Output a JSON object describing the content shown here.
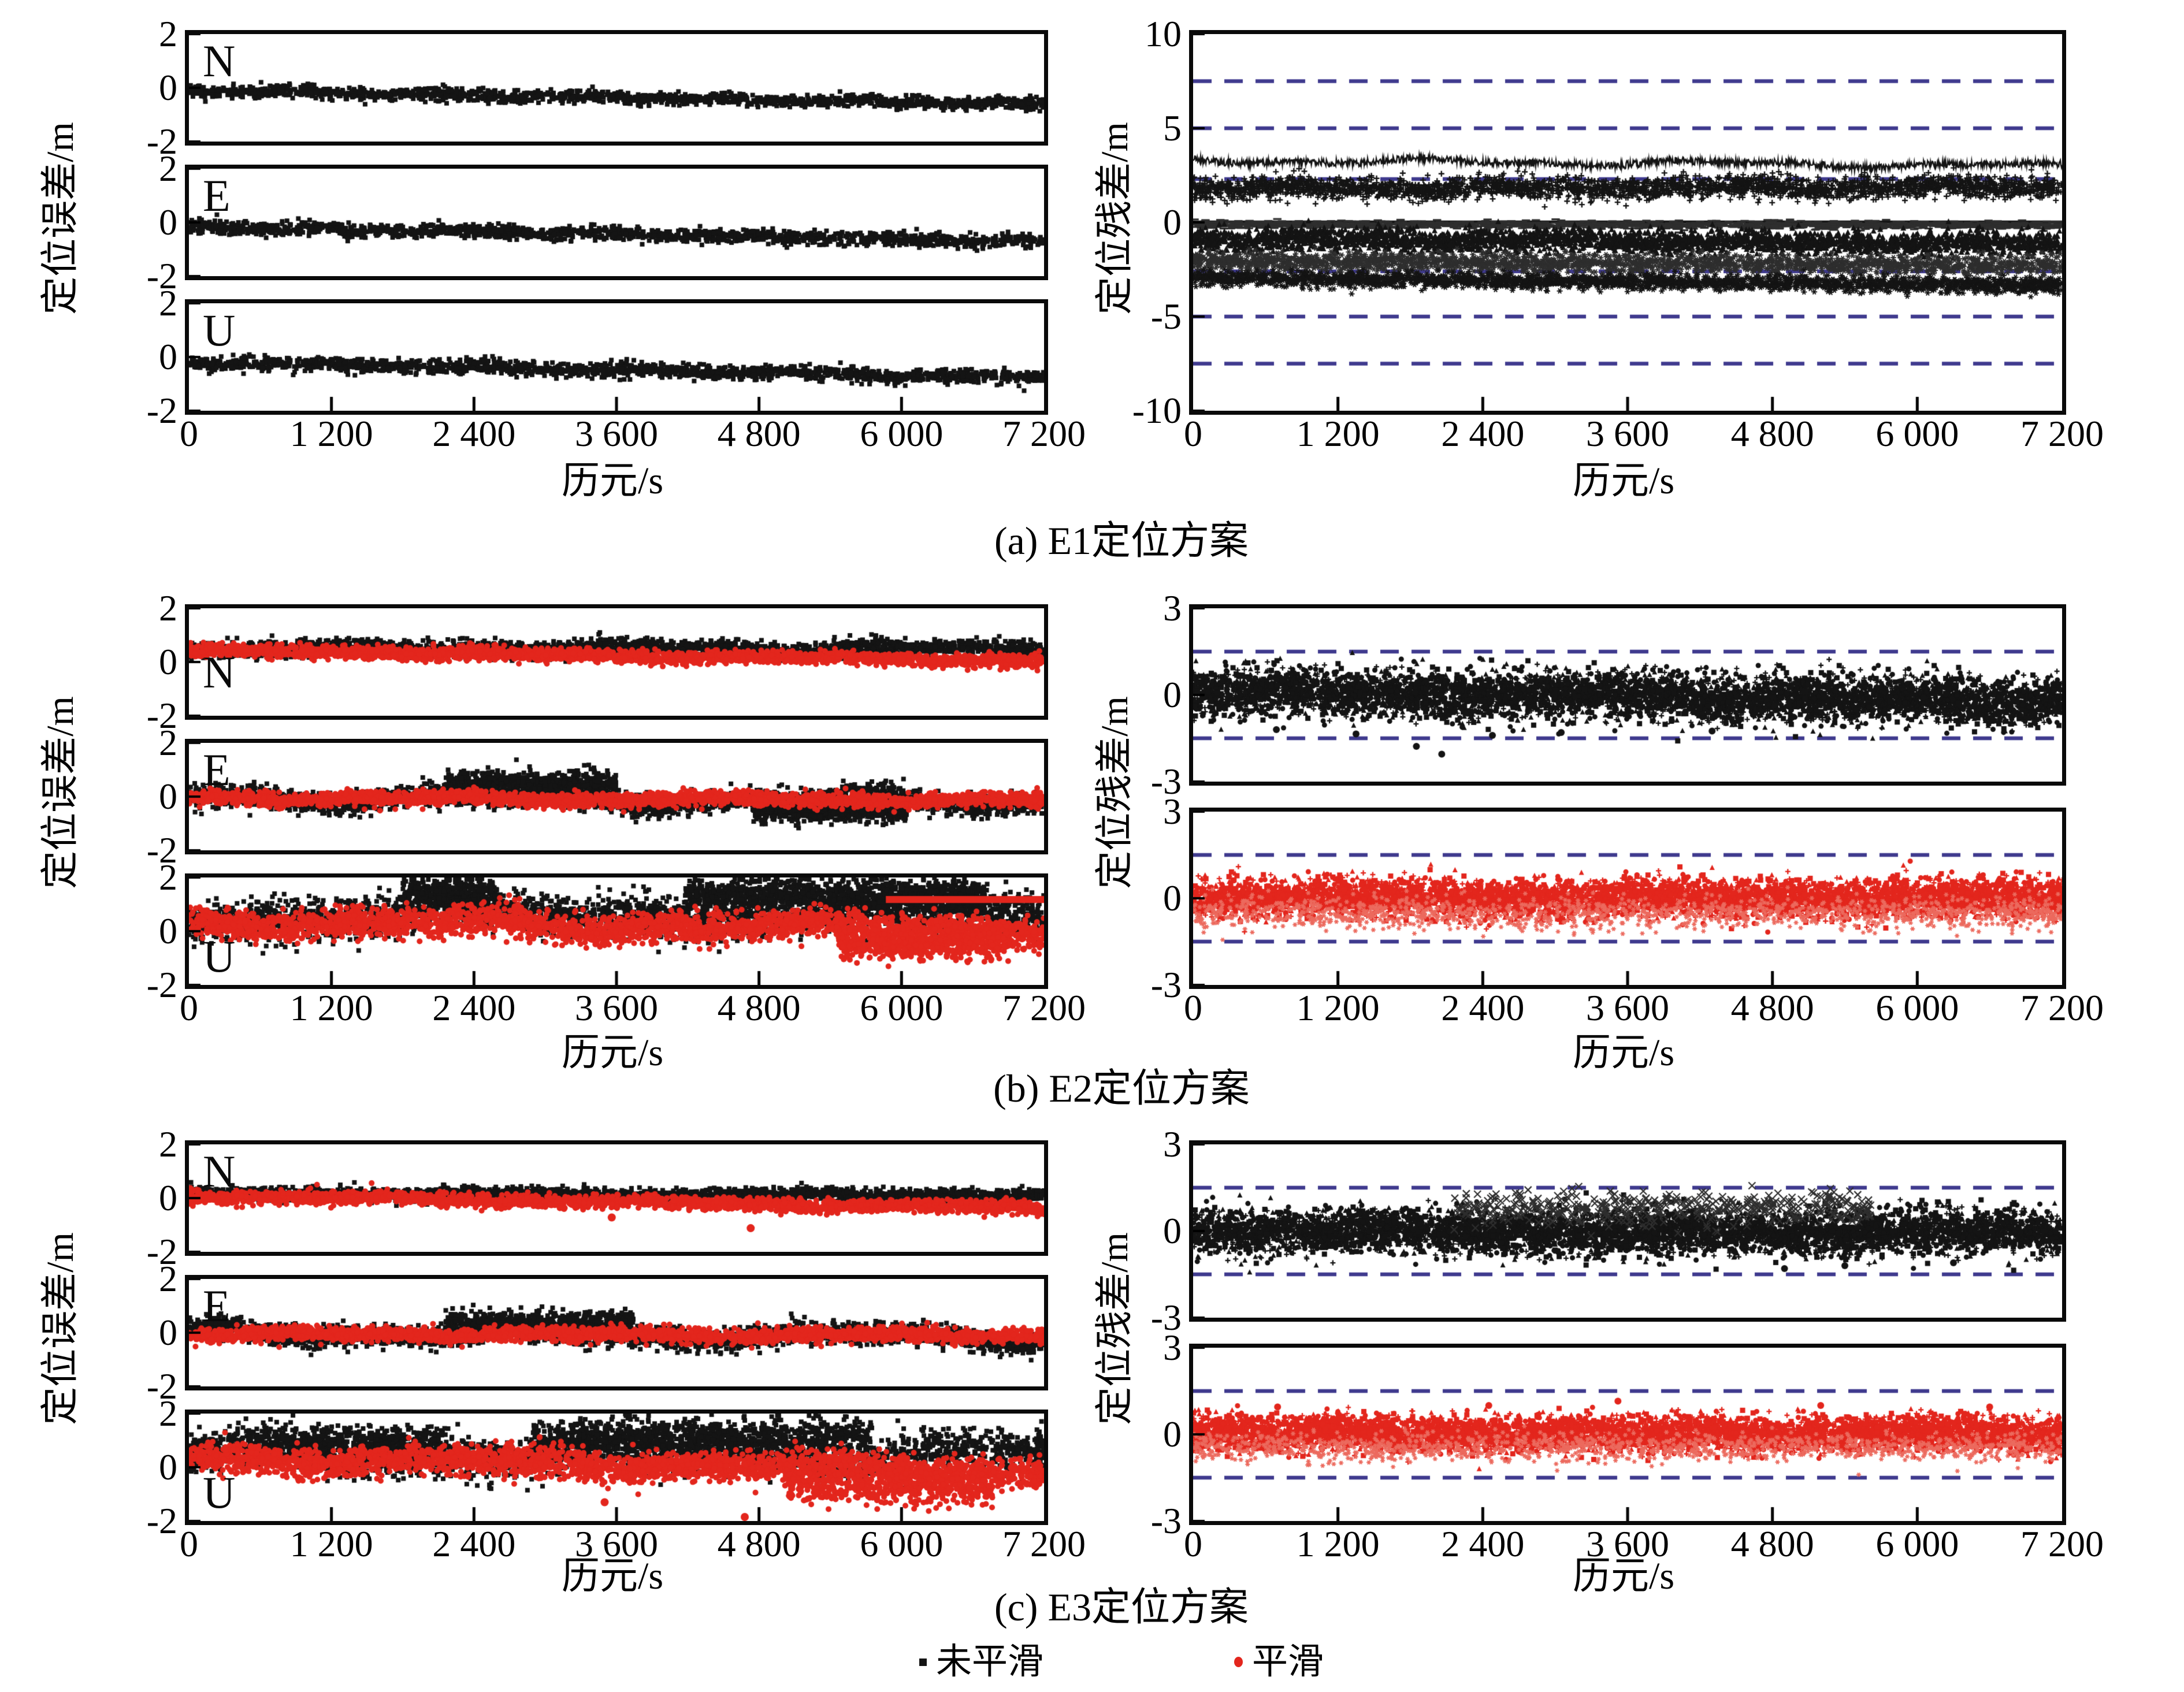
{
  "page": {
    "background": "#ffffff"
  },
  "colors": {
    "black": "#141414",
    "red": "#e3261d",
    "faint_red": "#ec6a5e",
    "gray": "#2e2e2e",
    "dash": "#3f3a8e",
    "axis": "#000000"
  },
  "labels": {
    "xlabel": "历元/s",
    "ylabel_error": "定位误差/m",
    "ylabel_residual": "定位残差/m"
  },
  "captions": {
    "a": "(a) E1定位方案",
    "b": "(b) E2定位方案",
    "c": "(c) E3定位方案"
  },
  "legend": {
    "items": [
      {
        "label": "未平滑",
        "marker": "square-dot",
        "color": "#141414"
      },
      {
        "label": "平滑",
        "marker": "round-dot",
        "color": "#e3261d"
      }
    ]
  },
  "chart_data": {
    "x_axis": {
      "min": 0,
      "max": 7200,
      "ticks": [
        0,
        1200,
        2400,
        3600,
        4800,
        6000,
        7200
      ],
      "tick_labels": [
        "0",
        "1 200",
        "2 400",
        "3 600",
        "4 800",
        "6 000",
        "7 200"
      ]
    },
    "a_left_N": {
      "type": "scatter",
      "corner": "N",
      "ylim": [
        -2,
        2
      ],
      "yticks": [
        2,
        0,
        -2
      ],
      "ytick_labels": [
        "2",
        "0",
        "-2"
      ],
      "seed": 11,
      "series": [
        {
          "kind": "band",
          "color": "black",
          "marker": "sq",
          "size": 4,
          "n": 1700,
          "y0": -0.1,
          "y1": -0.62,
          "std": 0.11,
          "wander": 0.05,
          "wfreq": 6
        }
      ]
    },
    "a_left_E": {
      "type": "scatter",
      "corner": "E",
      "ylim": [
        -2,
        2
      ],
      "yticks": [
        2,
        0,
        -2
      ],
      "ytick_labels": [
        "2",
        "0",
        "-2"
      ],
      "seed": 12,
      "series": [
        {
          "kind": "band",
          "color": "black",
          "marker": "sq",
          "size": 4,
          "n": 1700,
          "y0": -0.15,
          "y1": -0.72,
          "std": 0.12,
          "wander": 0.05,
          "wfreq": 6
        }
      ]
    },
    "a_left_U": {
      "type": "scatter",
      "corner": "U",
      "ylim": [
        -2,
        2
      ],
      "yticks": [
        2,
        0,
        -2
      ],
      "ytick_labels": [
        "2",
        "0",
        "-2"
      ],
      "seed": 13,
      "xticks": true,
      "series": [
        {
          "kind": "band",
          "color": "black",
          "marker": "sq",
          "size": 4,
          "n": 1700,
          "y0": -0.18,
          "y1": -0.78,
          "std": 0.13,
          "wander": 0.06,
          "wfreq": 5
        }
      ]
    },
    "a_right": {
      "type": "scatter",
      "ylim": [
        -10,
        10
      ],
      "yticks": [
        10,
        5,
        0,
        -5,
        -10
      ],
      "ytick_labels": [
        "10",
        "5",
        "0",
        "-5",
        "-10"
      ],
      "dashed": [
        7.5,
        5,
        2.3,
        -2.6,
        -5,
        -7.5
      ],
      "seed": 21,
      "xticks": true,
      "series": [
        {
          "kind": "line",
          "color": "black",
          "width": 2.5,
          "y0": 3.3,
          "y1": 3.0,
          "amp": 0.2,
          "n": 1500,
          "wander": 0.15,
          "wfreq": 3
        },
        {
          "kind": "band",
          "color": "black",
          "marker": "plus",
          "size": 5,
          "n": 3000,
          "y0": 1.8,
          "y1": 1.9,
          "std": 0.28,
          "wander": 0.12,
          "wfreq": 4
        },
        {
          "kind": "hline",
          "color": "black",
          "y": 0.02,
          "width": 5
        },
        {
          "kind": "band",
          "color": "gray",
          "marker": "dash",
          "size": 4,
          "n": 1700,
          "y0": -0.12,
          "y1": -0.14,
          "std": 0.1
        },
        {
          "kind": "band",
          "color": "black",
          "marker": "tri",
          "size": 5,
          "n": 3000,
          "y0": -0.85,
          "y1": -1.1,
          "std": 0.3,
          "wander": 0.1,
          "wfreq": 4
        },
        {
          "kind": "band",
          "color": "gray",
          "marker": "star",
          "size": 5,
          "n": 2300,
          "y0": -2.05,
          "y1": -2.3,
          "std": 0.25
        },
        {
          "kind": "band",
          "color": "black",
          "marker": "star",
          "size": 5,
          "n": 2500,
          "y0": -2.95,
          "y1": -3.35,
          "std": 0.2
        }
      ]
    },
    "b_left_N": {
      "type": "scatter",
      "corner": "N",
      "ylim": [
        -2,
        2
      ],
      "yticks": [
        2,
        0,
        -2
      ],
      "ytick_labels": [
        "2",
        "0",
        "-2"
      ],
      "seed": 31,
      "series": [
        {
          "kind": "band",
          "color": "black",
          "marker": "sq",
          "size": 4,
          "n": 2400,
          "y0": 0.5,
          "y1": 0.5,
          "std": 0.15,
          "wander": 0.08,
          "wfreq": 3
        },
        {
          "kind": "band",
          "color": "red",
          "marker": "circle",
          "size": 5,
          "n": 2400,
          "y0": 0.42,
          "y1": 0.05,
          "std": 0.12,
          "wander": 0.05,
          "wfreq": 3
        }
      ]
    },
    "b_left_E": {
      "type": "scatter",
      "corner": "E",
      "ylim": [
        -2,
        2
      ],
      "yticks": [
        2,
        0,
        -2
      ],
      "ytick_labels": [
        "2",
        "0",
        "-2"
      ],
      "seed": 32,
      "series": [
        {
          "kind": "band",
          "color": "black",
          "marker": "sq",
          "size": 4,
          "n": 2400,
          "y0": 0.0,
          "y1": -0.2,
          "std": 0.2,
          "wander": 0.25,
          "wfreq": 2.4
        },
        {
          "kind": "band",
          "color": "black",
          "marker": "sq",
          "size": 4,
          "n": 800,
          "xr": [
            0.3,
            0.5
          ],
          "y0": 0.45,
          "y1": 0.45,
          "std": 0.25
        },
        {
          "kind": "band",
          "color": "black",
          "marker": "sq",
          "size": 4,
          "n": 700,
          "xr": [
            0.66,
            0.84
          ],
          "y0": -0.5,
          "y1": -0.55,
          "std": 0.2
        },
        {
          "kind": "band",
          "color": "red",
          "marker": "circle",
          "size": 5,
          "n": 2600,
          "y0": -0.05,
          "y1": -0.15,
          "std": 0.13,
          "wander": 0.07,
          "wfreq": 3
        }
      ]
    },
    "b_left_U": {
      "type": "scatter",
      "corner": "U",
      "ylim": [
        -2,
        2
      ],
      "yticks": [
        2,
        0,
        -2
      ],
      "ytick_labels": [
        "2",
        "0",
        "-2"
      ],
      "seed": 33,
      "xticks": true,
      "series": [
        {
          "kind": "band",
          "color": "black",
          "marker": "sq",
          "size": 4,
          "n": 2600,
          "y0": 0.55,
          "y1": 0.7,
          "std": 0.4,
          "wander": 0.3,
          "wfreq": 2.1
        },
        {
          "kind": "band",
          "color": "black",
          "marker": "sq",
          "size": 4,
          "n": 1100,
          "xr": [
            0.58,
            0.93
          ],
          "y0": 1.35,
          "y1": 1.35,
          "std": 0.28
        },
        {
          "kind": "band",
          "color": "black",
          "marker": "sq",
          "size": 4,
          "n": 350,
          "xr": [
            0.25,
            0.36
          ],
          "y0": 1.4,
          "y1": 1.4,
          "std": 0.3
        },
        {
          "kind": "band",
          "color": "red",
          "marker": "circle",
          "size": 5,
          "n": 2700,
          "y0": 0.35,
          "y1": 0.05,
          "std": 0.28,
          "wander": 0.18,
          "wfreq": 2.4
        },
        {
          "kind": "band",
          "color": "red",
          "marker": "circle",
          "size": 5,
          "n": 500,
          "xr": [
            0.76,
            0.96
          ],
          "y0": -0.35,
          "y1": -0.55,
          "std": 0.3
        },
        {
          "kind": "hband",
          "color": "red",
          "xr": [
            0.815,
            1.0
          ],
          "y": 1.18,
          "h": 0.26
        }
      ]
    },
    "b_right_top": {
      "type": "scatter",
      "ylim": [
        -3,
        3
      ],
      "yticks": [
        3,
        0,
        -3
      ],
      "ytick_labels": [
        "3",
        "0",
        "-3"
      ],
      "dashed": [
        1.5,
        -1.5
      ],
      "seed": 41,
      "series": [
        {
          "kind": "band",
          "color": "black",
          "marker": "mix",
          "size": 4.5,
          "n": 5200,
          "y0": 0.1,
          "y1": -0.2,
          "std": 0.42,
          "wander": 0.08,
          "wfreq": 3
        },
        {
          "kind": "points",
          "color": "black",
          "marker": "circle",
          "size": 6,
          "pts": [
            [
              1350,
              -1.35
            ],
            [
              1850,
              -1.78
            ],
            [
              2060,
              -2.05
            ],
            [
              2480,
              -1.4
            ],
            [
              690,
              -1.2
            ],
            [
              3050,
              -1.3
            ],
            [
              4300,
              -1.25
            ]
          ]
        }
      ]
    },
    "b_right_bottom": {
      "type": "scatter",
      "ylim": [
        -3,
        3
      ],
      "yticks": [
        3,
        0,
        -3
      ],
      "ytick_labels": [
        "3",
        "0",
        "-3"
      ],
      "dashed": [
        1.5,
        -1.5
      ],
      "seed": 42,
      "xticks": true,
      "series": [
        {
          "kind": "band",
          "color": "red",
          "marker": "mix",
          "size": 4.5,
          "n": 5200,
          "y0": 0.02,
          "y1": 0.02,
          "std": 0.32,
          "wander": 0.05,
          "wfreq": 3
        },
        {
          "kind": "band",
          "color": "faint_red",
          "marker": "star",
          "size": 4,
          "n": 1400,
          "y0": -0.5,
          "y1": -0.5,
          "std": 0.28
        }
      ]
    },
    "c_left_N": {
      "type": "scatter",
      "corner": "N",
      "ylim": [
        -2,
        2
      ],
      "yticks": [
        2,
        0,
        -2
      ],
      "ytick_labels": [
        "2",
        "0",
        "-2"
      ],
      "seed": 51,
      "series": [
        {
          "kind": "band",
          "color": "black",
          "marker": "sq",
          "size": 4,
          "n": 2400,
          "y0": 0.15,
          "y1": 0.1,
          "std": 0.12,
          "wander": 0.06,
          "wfreq": 3
        },
        {
          "kind": "band",
          "color": "red",
          "marker": "circle",
          "size": 5,
          "n": 2400,
          "y0": 0.08,
          "y1": -0.38,
          "std": 0.12,
          "wander": 0.05,
          "wfreq": 3
        },
        {
          "kind": "points",
          "color": "red",
          "marker": "circle",
          "size": 7,
          "pts": [
            [
              3560,
              -0.72
            ],
            [
              4730,
              -1.12
            ]
          ]
        }
      ]
    },
    "c_left_E": {
      "type": "scatter",
      "corner": "E",
      "ylim": [
        -2,
        2
      ],
      "yticks": [
        2,
        0,
        -2
      ],
      "ytick_labels": [
        "2",
        "0",
        "-2"
      ],
      "seed": 52,
      "series": [
        {
          "kind": "band",
          "color": "black",
          "marker": "sq",
          "size": 4,
          "n": 2400,
          "y0": 0.0,
          "y1": -0.18,
          "std": 0.2,
          "wander": 0.2,
          "wfreq": 2.6
        },
        {
          "kind": "band",
          "color": "black",
          "marker": "sq",
          "size": 4,
          "n": 700,
          "xr": [
            0.3,
            0.52
          ],
          "y0": 0.35,
          "y1": 0.35,
          "std": 0.22
        },
        {
          "kind": "band",
          "color": "red",
          "marker": "circle",
          "size": 5,
          "n": 2600,
          "y0": -0.05,
          "y1": -0.1,
          "std": 0.13,
          "wander": 0.06,
          "wfreq": 3
        }
      ]
    },
    "c_left_U": {
      "type": "scatter",
      "corner": "U",
      "ylim": [
        -2,
        2
      ],
      "yticks": [
        2,
        0,
        -2
      ],
      "ytick_labels": [
        "2",
        "0",
        "-2"
      ],
      "seed": 53,
      "xticks": true,
      "series": [
        {
          "kind": "band",
          "color": "black",
          "marker": "sq",
          "size": 4,
          "n": 2600,
          "y0": 0.5,
          "y1": 0.55,
          "std": 0.38,
          "wander": 0.28,
          "wfreq": 2.2
        },
        {
          "kind": "band",
          "color": "black",
          "marker": "sq",
          "size": 4,
          "n": 900,
          "xr": [
            0.4,
            0.8
          ],
          "y0": 1.15,
          "y1": 1.15,
          "std": 0.33
        },
        {
          "kind": "band",
          "color": "black",
          "marker": "sq",
          "size": 4,
          "n": 450,
          "xr": [
            0.1,
            0.3
          ],
          "y0": 0.95,
          "y1": 0.95,
          "std": 0.3
        },
        {
          "kind": "band",
          "color": "red",
          "marker": "circle",
          "size": 5,
          "n": 2700,
          "y0": 0.35,
          "y1": -0.15,
          "std": 0.28,
          "wander": 0.15,
          "wfreq": 2.5
        },
        {
          "kind": "band",
          "color": "red",
          "marker": "circle",
          "size": 5,
          "n": 500,
          "xr": [
            0.7,
            0.94
          ],
          "y0": -0.5,
          "y1": -0.75,
          "std": 0.32
        },
        {
          "kind": "points",
          "color": "red",
          "marker": "circle",
          "size": 7,
          "pts": [
            [
              3500,
              -1.3
            ],
            [
              4680,
              -1.85
            ]
          ]
        }
      ]
    },
    "c_right_top": {
      "type": "scatter",
      "ylim": [
        -3,
        3
      ],
      "yticks": [
        3,
        0,
        -3
      ],
      "ytick_labels": [
        "3",
        "0",
        "-3"
      ],
      "dashed": [
        1.5,
        -1.5
      ],
      "seed": 61,
      "series": [
        {
          "kind": "band",
          "color": "black",
          "marker": "mix",
          "size": 4.5,
          "n": 5200,
          "y0": 0.02,
          "y1": -0.08,
          "std": 0.38,
          "wander": 0.06,
          "wfreq": 3
        },
        {
          "kind": "band",
          "color": "gray",
          "marker": "x",
          "size": 6,
          "n": 450,
          "xr": [
            0.3,
            0.78
          ],
          "y0": 0.75,
          "y1": 0.85,
          "std": 0.3
        },
        {
          "kind": "points",
          "color": "black",
          "marker": "circle",
          "size": 6,
          "pts": [
            [
              4900,
              -1.3
            ],
            [
              5400,
              -1.2
            ],
            [
              6300,
              -1.1
            ]
          ]
        }
      ]
    },
    "c_right_bottom": {
      "type": "scatter",
      "ylim": [
        -3,
        3
      ],
      "yticks": [
        3,
        0,
        -3
      ],
      "ytick_labels": [
        "3",
        "0",
        "-3"
      ],
      "dashed": [
        1.5,
        -1.5
      ],
      "seed": 62,
      "xticks": true,
      "series": [
        {
          "kind": "band",
          "color": "red",
          "marker": "mix",
          "size": 4.5,
          "n": 5200,
          "y0": 0.05,
          "y1": 0.02,
          "std": 0.3,
          "wander": 0.05,
          "wfreq": 3
        },
        {
          "kind": "band",
          "color": "faint_red",
          "marker": "star",
          "size": 4,
          "n": 1300,
          "y0": -0.45,
          "y1": -0.45,
          "std": 0.25
        },
        {
          "kind": "points",
          "color": "red",
          "marker": "circle",
          "size": 6,
          "pts": [
            [
              700,
              0.95
            ],
            [
              2450,
              1.0
            ],
            [
              3520,
              1.15
            ],
            [
              5200,
              1.0
            ],
            [
              6600,
              0.95
            ]
          ]
        }
      ]
    }
  }
}
